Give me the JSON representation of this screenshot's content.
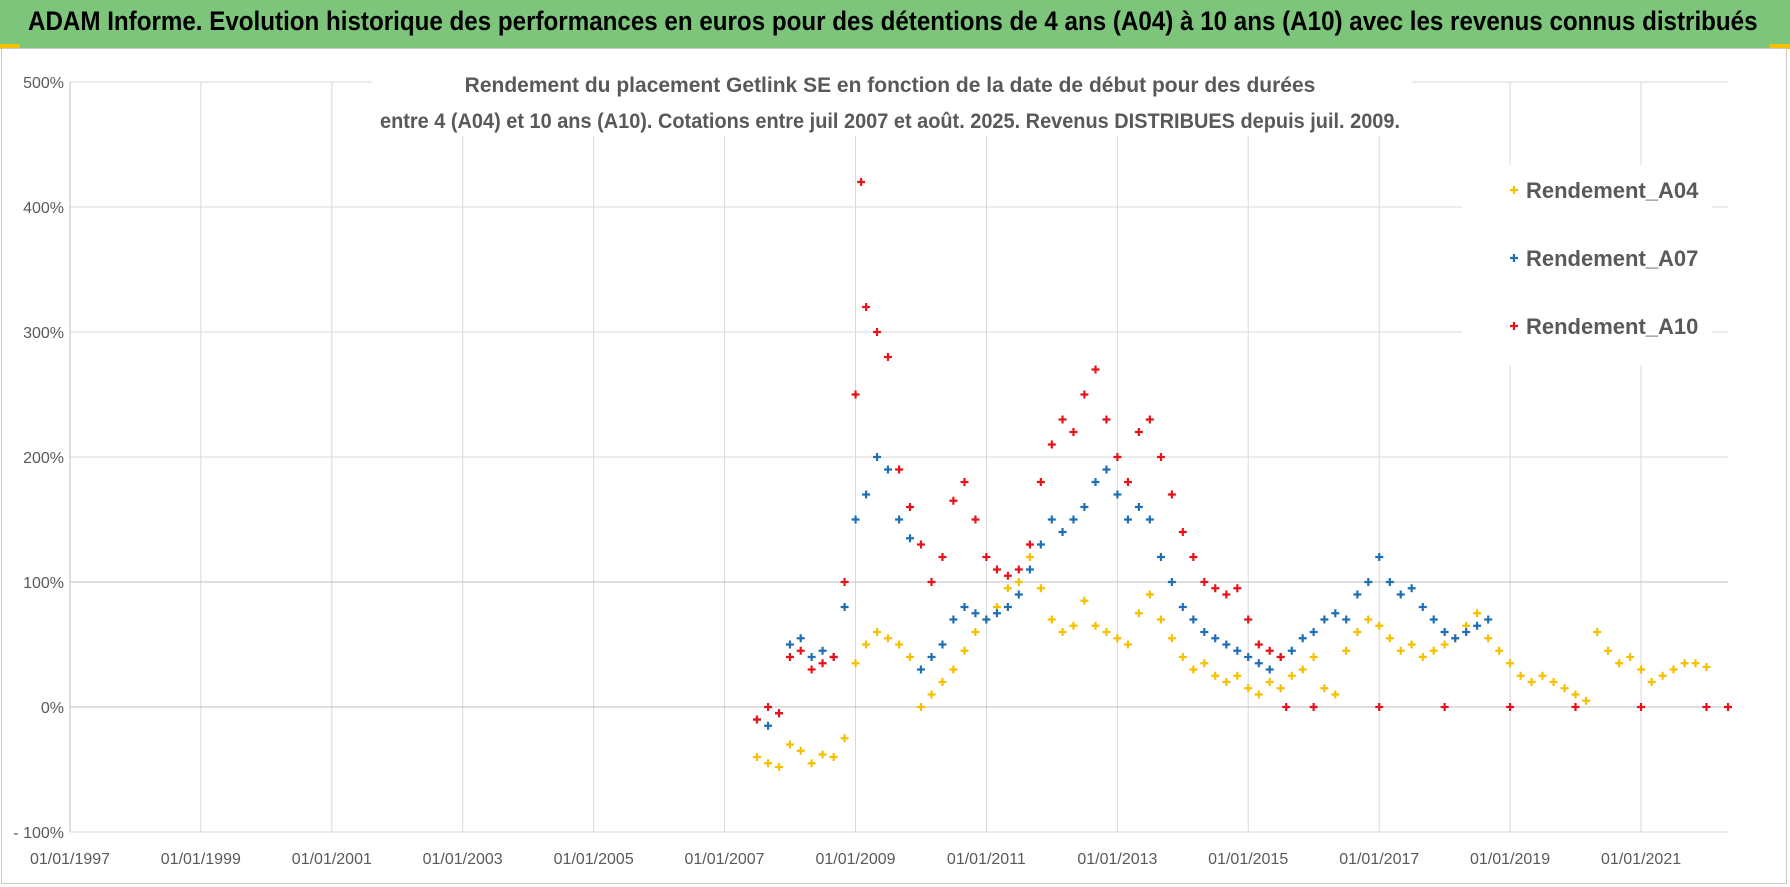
{
  "header": {
    "banner_title": "ADAM Informe. Evolution historique des performances en euros pour des détentions de 4 ans (A04) à 10 ans (A10) avec les revenus connus distribués"
  },
  "colors": {
    "banner": "#7dc57b",
    "A04": "#f5c000",
    "A07": "#1f6fb5",
    "A10": "#e8131a"
  },
  "chart_data": {
    "type": "scatter",
    "title": "Rendement du placement Getlink SE en fonction de la date de début pour des durées",
    "subtitle": "entre 4 (A04) et 10 ans (A10). Cotations entre juil 2007 et août. 2025. Revenus DISTRIBUES depuis juil. 2009.",
    "xlabel": "",
    "ylabel": "",
    "x_range": [
      "1997-01-01",
      "2022-05-01"
    ],
    "ylim": [
      -100,
      500
    ],
    "x_tick_labels": [
      "01/01/1997",
      "01/01/1999",
      "01/01/2001",
      "01/01/2003",
      "01/01/2005",
      "01/01/2007",
      "01/01/2009",
      "01/01/2011",
      "01/01/2013",
      "01/01/2015",
      "01/01/2017",
      "01/01/2019",
      "01/01/2021"
    ],
    "y_tick_labels": [
      "500%",
      "400%",
      "300%",
      "200%",
      "100%",
      "0%",
      "- 100%"
    ],
    "y_ticks": [
      500,
      400,
      300,
      200,
      100,
      0,
      -100
    ],
    "grid": true,
    "legend": "right",
    "marker": "+",
    "series": [
      {
        "name": "Rendement_A04",
        "color": "#f5c000",
        "points": [
          [
            "2007-07-01",
            -40
          ],
          [
            "2007-09-01",
            -45
          ],
          [
            "2007-11-01",
            -48
          ],
          [
            "2008-01-01",
            -30
          ],
          [
            "2008-03-01",
            -35
          ],
          [
            "2008-05-01",
            -45
          ],
          [
            "2008-07-01",
            -38
          ],
          [
            "2008-09-01",
            -40
          ],
          [
            "2008-11-01",
            -25
          ],
          [
            "2009-01-01",
            35
          ],
          [
            "2009-03-01",
            50
          ],
          [
            "2009-05-01",
            60
          ],
          [
            "2009-07-01",
            55
          ],
          [
            "2009-09-01",
            50
          ],
          [
            "2009-11-01",
            40
          ],
          [
            "2010-01-01",
            0
          ],
          [
            "2010-03-01",
            10
          ],
          [
            "2010-05-01",
            20
          ],
          [
            "2010-07-01",
            30
          ],
          [
            "2010-09-01",
            45
          ],
          [
            "2010-11-01",
            60
          ],
          [
            "2011-01-01",
            70
          ],
          [
            "2011-03-01",
            80
          ],
          [
            "2011-05-01",
            95
          ],
          [
            "2011-07-01",
            100
          ],
          [
            "2011-09-01",
            120
          ],
          [
            "2011-11-01",
            95
          ],
          [
            "2012-01-01",
            70
          ],
          [
            "2012-03-01",
            60
          ],
          [
            "2012-05-01",
            65
          ],
          [
            "2012-07-01",
            85
          ],
          [
            "2012-09-01",
            65
          ],
          [
            "2012-11-01",
            60
          ],
          [
            "2013-01-01",
            55
          ],
          [
            "2013-03-01",
            50
          ],
          [
            "2013-05-01",
            75
          ],
          [
            "2013-07-01",
            90
          ],
          [
            "2013-09-01",
            70
          ],
          [
            "2013-11-01",
            55
          ],
          [
            "2014-01-01",
            40
          ],
          [
            "2014-03-01",
            30
          ],
          [
            "2014-05-01",
            35
          ],
          [
            "2014-07-01",
            25
          ],
          [
            "2014-09-01",
            20
          ],
          [
            "2014-11-01",
            25
          ],
          [
            "2015-01-01",
            15
          ],
          [
            "2015-03-01",
            10
          ],
          [
            "2015-05-01",
            20
          ],
          [
            "2015-07-01",
            15
          ],
          [
            "2015-09-01",
            25
          ],
          [
            "2015-11-01",
            30
          ],
          [
            "2016-01-01",
            40
          ],
          [
            "2016-03-01",
            15
          ],
          [
            "2016-05-01",
            10
          ],
          [
            "2016-07-01",
            45
          ],
          [
            "2016-09-01",
            60
          ],
          [
            "2016-11-01",
            70
          ],
          [
            "2017-01-01",
            65
          ],
          [
            "2017-03-01",
            55
          ],
          [
            "2017-05-01",
            45
          ],
          [
            "2017-07-01",
            50
          ],
          [
            "2017-09-01",
            40
          ],
          [
            "2017-11-01",
            45
          ],
          [
            "2018-01-01",
            50
          ],
          [
            "2018-03-01",
            55
          ],
          [
            "2018-05-01",
            65
          ],
          [
            "2018-07-01",
            75
          ],
          [
            "2018-09-01",
            55
          ],
          [
            "2018-11-01",
            45
          ],
          [
            "2019-01-01",
            35
          ],
          [
            "2019-03-01",
            25
          ],
          [
            "2019-05-01",
            20
          ],
          [
            "2019-07-01",
            25
          ],
          [
            "2019-09-01",
            20
          ],
          [
            "2019-11-01",
            15
          ],
          [
            "2020-01-01",
            10
          ],
          [
            "2020-03-01",
            5
          ],
          [
            "2020-05-01",
            60
          ],
          [
            "2020-07-01",
            45
          ],
          [
            "2020-09-01",
            35
          ],
          [
            "2020-11-01",
            40
          ],
          [
            "2021-01-01",
            30
          ],
          [
            "2021-03-01",
            20
          ],
          [
            "2021-05-01",
            25
          ],
          [
            "2021-07-01",
            30
          ],
          [
            "2021-09-01",
            35
          ],
          [
            "2021-11-01",
            35
          ],
          [
            "2022-01-01",
            32
          ]
        ]
      },
      {
        "name": "Rendement_A07",
        "color": "#1f6fb5",
        "points": [
          [
            "2007-07-01",
            -10
          ],
          [
            "2007-09-01",
            -15
          ],
          [
            "2007-11-01",
            -5
          ],
          [
            "2008-01-01",
            50
          ],
          [
            "2008-03-01",
            55
          ],
          [
            "2008-05-01",
            40
          ],
          [
            "2008-07-01",
            45
          ],
          [
            "2008-09-01",
            40
          ],
          [
            "2008-11-01",
            80
          ],
          [
            "2009-01-01",
            150
          ],
          [
            "2009-03-01",
            170
          ],
          [
            "2009-05-01",
            200
          ],
          [
            "2009-07-01",
            190
          ],
          [
            "2009-09-01",
            150
          ],
          [
            "2009-11-01",
            135
          ],
          [
            "2010-01-01",
            30
          ],
          [
            "2010-03-01",
            40
          ],
          [
            "2010-05-01",
            50
          ],
          [
            "2010-07-01",
            70
          ],
          [
            "2010-09-01",
            80
          ],
          [
            "2010-11-01",
            75
          ],
          [
            "2011-01-01",
            70
          ],
          [
            "2011-03-01",
            75
          ],
          [
            "2011-05-01",
            80
          ],
          [
            "2011-07-01",
            90
          ],
          [
            "2011-09-01",
            110
          ],
          [
            "2011-11-01",
            130
          ],
          [
            "2012-01-01",
            150
          ],
          [
            "2012-03-01",
            140
          ],
          [
            "2012-05-01",
            150
          ],
          [
            "2012-07-01",
            160
          ],
          [
            "2012-09-01",
            180
          ],
          [
            "2012-11-01",
            190
          ],
          [
            "2013-01-01",
            170
          ],
          [
            "2013-03-01",
            150
          ],
          [
            "2013-05-01",
            160
          ],
          [
            "2013-07-01",
            150
          ],
          [
            "2013-09-01",
            120
          ],
          [
            "2013-11-01",
            100
          ],
          [
            "2014-01-01",
            80
          ],
          [
            "2014-03-01",
            70
          ],
          [
            "2014-05-01",
            60
          ],
          [
            "2014-07-01",
            55
          ],
          [
            "2014-09-01",
            50
          ],
          [
            "2014-11-01",
            45
          ],
          [
            "2015-01-01",
            40
          ],
          [
            "2015-03-01",
            35
          ],
          [
            "2015-05-01",
            30
          ],
          [
            "2015-07-01",
            40
          ],
          [
            "2015-09-01",
            45
          ],
          [
            "2015-11-01",
            55
          ],
          [
            "2016-01-01",
            60
          ],
          [
            "2016-03-01",
            70
          ],
          [
            "2016-05-01",
            75
          ],
          [
            "2016-07-01",
            70
          ],
          [
            "2016-09-01",
            90
          ],
          [
            "2016-11-01",
            100
          ],
          [
            "2017-01-01",
            120
          ],
          [
            "2017-03-01",
            100
          ],
          [
            "2017-05-01",
            90
          ],
          [
            "2017-07-01",
            95
          ],
          [
            "2017-09-01",
            80
          ],
          [
            "2017-11-01",
            70
          ],
          [
            "2018-01-01",
            60
          ],
          [
            "2018-03-01",
            55
          ],
          [
            "2018-05-01",
            60
          ],
          [
            "2018-07-01",
            65
          ],
          [
            "2018-09-01",
            70
          ]
        ]
      },
      {
        "name": "Rendement_A10",
        "color": "#e8131a",
        "points": [
          [
            "2007-07-01",
            -10
          ],
          [
            "2007-09-01",
            0
          ],
          [
            "2007-11-01",
            -5
          ],
          [
            "2008-01-01",
            40
          ],
          [
            "2008-03-01",
            45
          ],
          [
            "2008-05-01",
            30
          ],
          [
            "2008-07-01",
            35
          ],
          [
            "2008-09-01",
            40
          ],
          [
            "2008-11-01",
            100
          ],
          [
            "2009-01-01",
            250
          ],
          [
            "2009-02-01",
            420
          ],
          [
            "2009-03-01",
            320
          ],
          [
            "2009-05-01",
            300
          ],
          [
            "2009-07-01",
            280
          ],
          [
            "2009-09-01",
            190
          ],
          [
            "2009-11-01",
            160
          ],
          [
            "2010-01-01",
            130
          ],
          [
            "2010-03-01",
            100
          ],
          [
            "2010-05-01",
            120
          ],
          [
            "2010-07-01",
            165
          ],
          [
            "2010-09-01",
            180
          ],
          [
            "2010-11-01",
            150
          ],
          [
            "2011-01-01",
            120
          ],
          [
            "2011-03-01",
            110
          ],
          [
            "2011-05-01",
            105
          ],
          [
            "2011-07-01",
            110
          ],
          [
            "2011-09-01",
            130
          ],
          [
            "2011-11-01",
            180
          ],
          [
            "2012-01-01",
            210
          ],
          [
            "2012-03-01",
            230
          ],
          [
            "2012-05-01",
            220
          ],
          [
            "2012-07-01",
            250
          ],
          [
            "2012-09-01",
            270
          ],
          [
            "2012-11-01",
            230
          ],
          [
            "2013-01-01",
            200
          ],
          [
            "2013-03-01",
            180
          ],
          [
            "2013-05-01",
            220
          ],
          [
            "2013-07-01",
            230
          ],
          [
            "2013-09-01",
            200
          ],
          [
            "2013-11-01",
            170
          ],
          [
            "2014-01-01",
            140
          ],
          [
            "2014-03-01",
            120
          ],
          [
            "2014-05-01",
            100
          ],
          [
            "2014-07-01",
            95
          ],
          [
            "2014-09-01",
            90
          ],
          [
            "2014-11-01",
            95
          ],
          [
            "2015-01-01",
            70
          ],
          [
            "2015-03-01",
            50
          ],
          [
            "2015-05-01",
            45
          ],
          [
            "2015-07-01",
            40
          ],
          [
            "2015-08-01",
            0
          ],
          [
            "2016-01-01",
            0
          ],
          [
            "2017-01-01",
            0
          ],
          [
            "2018-01-01",
            0
          ],
          [
            "2019-01-01",
            0
          ],
          [
            "2020-01-01",
            0
          ],
          [
            "2021-01-01",
            0
          ],
          [
            "2022-01-01",
            0
          ],
          [
            "2022-05-01",
            0
          ]
        ]
      }
    ]
  }
}
